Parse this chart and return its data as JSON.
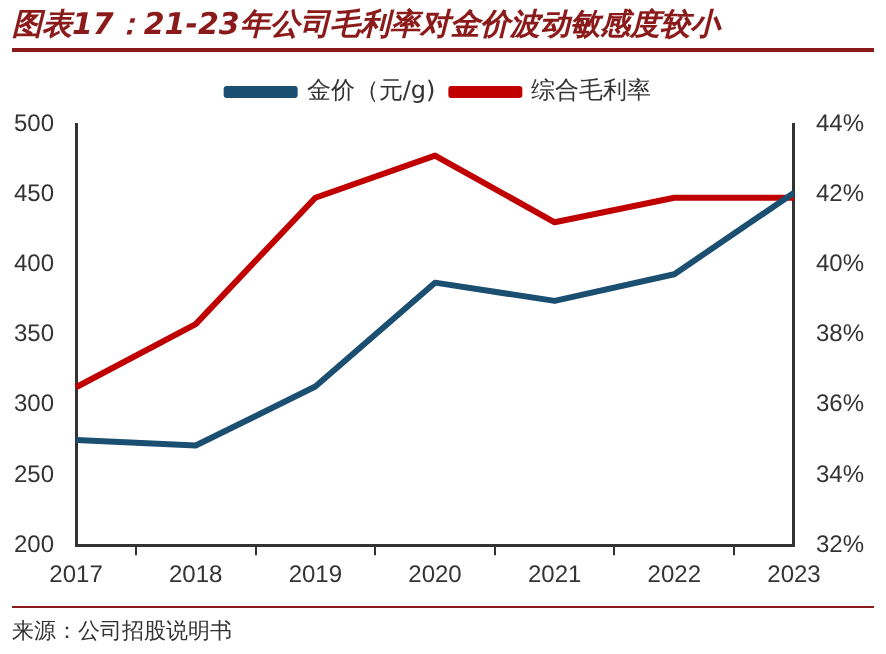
{
  "chart_data": {
    "type": "line",
    "title": "图表17：21-23年公司毛利率对金价波动敏感度较小",
    "categories": [
      "2017",
      "2018",
      "2019",
      "2020",
      "2021",
      "2022",
      "2023"
    ],
    "series": [
      {
        "name": "金价（元/g)",
        "color": "#1b4f72",
        "values": [
          275,
          271,
          313,
          387,
          374,
          393,
          451
        ]
      },
      {
        "name": "综合毛利率",
        "color": "#c00000",
        "axis": "y2",
        "values": [
          36.5,
          38.3,
          41.9,
          43.1,
          41.2,
          41.9,
          41.9
        ]
      }
    ],
    "ylim": [
      200,
      500
    ],
    "yticks": [
      200,
      250,
      300,
      350,
      400,
      450,
      500
    ],
    "y2lim": [
      32,
      44
    ],
    "y2ticks": [
      {
        "value": 32,
        "label": "32%"
      },
      {
        "value": 34,
        "label": "34%"
      },
      {
        "value": 36,
        "label": "36%"
      },
      {
        "value": 38,
        "label": "38%"
      },
      {
        "value": 40,
        "label": "40%"
      },
      {
        "value": 42,
        "label": "42%"
      },
      {
        "value": 44,
        "label": "44%"
      }
    ],
    "grid": false,
    "legend": "top",
    "marker": "none",
    "line_style": "solid",
    "annotations": [
      "来源：公司招股说明书"
    ]
  }
}
